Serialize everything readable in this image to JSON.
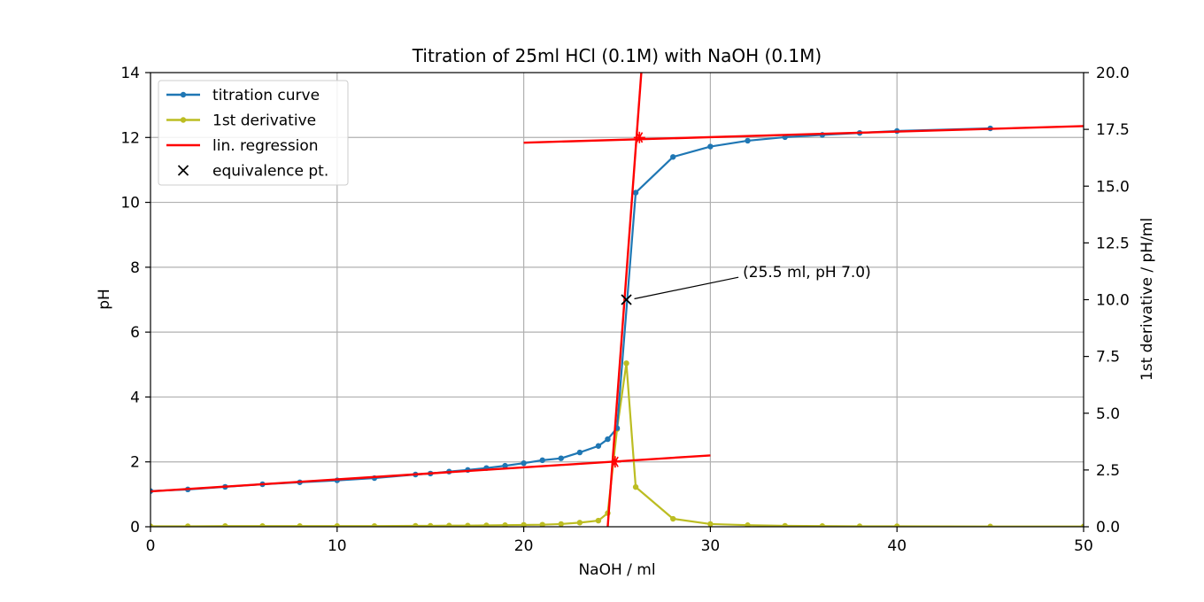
{
  "chart_data": {
    "type": "line",
    "title": "Titration of 25ml HCl (0.1M) with NaOH (0.1M)",
    "xlabel": "NaOH / ml",
    "ylabel": "pH",
    "y2label": "1st derivative / pH/ml",
    "xlim": [
      0,
      50
    ],
    "ylim": [
      0,
      14
    ],
    "y2lim": [
      0,
      20
    ],
    "xticks": [
      "0",
      "10",
      "20",
      "30",
      "40",
      "50"
    ],
    "yticks": [
      "0",
      "2",
      "4",
      "6",
      "8",
      "10",
      "12",
      "14"
    ],
    "y2ticks": [
      "0.0",
      "2.5",
      "5.0",
      "7.5",
      "10.0",
      "12.5",
      "15.0",
      "17.5",
      "20.0"
    ],
    "grid": true,
    "legend_position": "upper-left",
    "colors": {
      "titration": "#1f77b4",
      "derivative": "#bcbd22",
      "regression": "#ff0000",
      "equivalence": "#000000"
    },
    "series": [
      {
        "name": "titration curve",
        "axis": "left",
        "x": [
          0,
          2,
          4,
          6,
          8,
          10,
          12,
          14.2,
          15,
          16,
          17,
          18,
          19,
          20,
          21,
          22,
          23,
          24,
          24.5,
          25,
          26,
          28,
          30,
          32,
          34,
          36,
          38,
          40,
          45
        ],
        "y": [
          1.1,
          1.15,
          1.23,
          1.31,
          1.37,
          1.43,
          1.5,
          1.61,
          1.64,
          1.7,
          1.75,
          1.81,
          1.88,
          1.96,
          2.05,
          2.11,
          2.29,
          2.49,
          2.7,
          3.04,
          10.3,
          11.4,
          11.72,
          11.9,
          12.01,
          12.08,
          12.14,
          12.2,
          12.28
        ]
      },
      {
        "name": "1st derivative",
        "axis": "right",
        "x": [
          0,
          2,
          4,
          6,
          8,
          10,
          12,
          14.2,
          15,
          16,
          17,
          18,
          19,
          20,
          21,
          22,
          23,
          24,
          24.5,
          25,
          25.5,
          26,
          28,
          30,
          32,
          34,
          36,
          38,
          40,
          45,
          50
        ],
        "y": [
          0.02,
          0.02,
          0.03,
          0.03,
          0.03,
          0.03,
          0.03,
          0.04,
          0.04,
          0.05,
          0.05,
          0.06,
          0.07,
          0.08,
          0.09,
          0.12,
          0.18,
          0.27,
          0.6,
          4.3,
          7.2,
          1.75,
          0.35,
          0.12,
          0.07,
          0.04,
          0.03,
          0.02,
          0.02,
          0.01,
          0.01
        ]
      },
      {
        "name": "lin. regression",
        "axis": "left",
        "lines": [
          {
            "x": [
              0,
              30
            ],
            "y": [
              1.09,
              2.2
            ]
          },
          {
            "x": [
              20,
              50
            ],
            "y": [
              11.84,
              12.35
            ]
          },
          {
            "x": [
              24.5,
              26.3
            ],
            "y": [
              0,
              14
            ]
          }
        ]
      },
      {
        "name": "equivalence pt.",
        "axis": "left",
        "x": [
          25.5
        ],
        "y": [
          7.0
        ]
      }
    ],
    "intersections": [
      {
        "x": 24.9,
        "y": 2.0
      },
      {
        "x": 26.2,
        "y": 12.0
      }
    ],
    "annotation": {
      "text": "(25.5 ml, pH 7.0)",
      "x": 25.5,
      "y": 7.0,
      "text_x": 31.6,
      "text_y": 7.8
    }
  }
}
